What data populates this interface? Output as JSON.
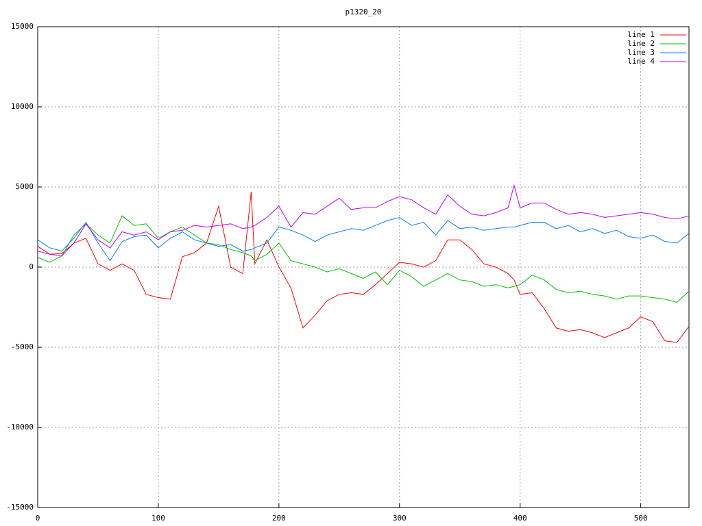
{
  "chart_data": {
    "type": "line",
    "title": "p1320_20",
    "x": [
      0,
      10,
      20,
      30,
      40,
      50,
      60,
      70,
      80,
      90,
      100,
      110,
      120,
      130,
      140,
      150,
      160,
      170,
      177,
      180,
      190,
      200,
      210,
      220,
      230,
      240,
      250,
      260,
      270,
      280,
      290,
      300,
      310,
      320,
      330,
      340,
      350,
      360,
      370,
      380,
      390,
      395,
      400,
      410,
      420,
      430,
      440,
      450,
      460,
      470,
      480,
      490,
      500,
      510,
      520,
      530,
      540
    ],
    "series": [
      {
        "name": "line 1",
        "color": "#ff0000",
        "values": [
          1300,
          800,
          850,
          1500,
          1800,
          200,
          -200,
          200,
          -200,
          -1700,
          -1900,
          -2000,
          650,
          900,
          1500,
          3800,
          0,
          -400,
          4700,
          200,
          1700,
          0,
          -1300,
          -3800,
          -3000,
          -2100,
          -1700,
          -1600,
          -1700,
          -1100,
          -400,
          300,
          200,
          0,
          400,
          1700,
          1700,
          1100,
          200,
          0,
          -400,
          -800,
          -1700,
          -1600,
          -2600,
          -3800,
          -4000,
          -3900,
          -4100,
          -4400,
          -4100,
          -3800,
          -3100,
          -3400,
          -4600,
          -4700,
          -3700
        ]
      },
      {
        "name": "line 2",
        "color": "#00c000",
        "values": [
          600,
          300,
          700,
          2000,
          2700,
          2000,
          1500,
          3200,
          2600,
          2700,
          1800,
          2200,
          2500,
          2000,
          1500,
          1400,
          1100,
          900,
          700,
          400,
          800,
          1500,
          400,
          200,
          0,
          -300,
          -100,
          -400,
          -700,
          -300,
          -1100,
          -200,
          -600,
          -1200,
          -800,
          -400,
          -800,
          -900,
          -1200,
          -1100,
          -1300,
          -1200,
          -1100,
          -500,
          -800,
          -1400,
          -1600,
          -1500,
          -1700,
          -1800,
          -2000,
          -1800,
          -1800,
          -1900,
          -2000,
          -2200,
          -1500
        ]
      },
      {
        "name": "line 3",
        "color": "#0080ff",
        "values": [
          1700,
          1200,
          1000,
          1800,
          2800,
          1500,
          400,
          1600,
          1900,
          2000,
          1200,
          1800,
          2200,
          1700,
          1500,
          1300,
          1400,
          1000,
          1100,
          1200,
          1500,
          2500,
          2300,
          2000,
          1600,
          2000,
          2200,
          2400,
          2300,
          2600,
          2900,
          3100,
          2600,
          2800,
          2000,
          2900,
          2400,
          2500,
          2300,
          2400,
          2500,
          2500,
          2600,
          2800,
          2800,
          2400,
          2600,
          2200,
          2400,
          2100,
          2300,
          1900,
          1800,
          2000,
          1600,
          1500,
          2100
        ]
      },
      {
        "name": "line 4",
        "color": "#c000ff",
        "values": [
          1000,
          800,
          700,
          1500,
          2700,
          1700,
          1200,
          2200,
          2000,
          2200,
          1700,
          2200,
          2300,
          2600,
          2500,
          2600,
          2700,
          2400,
          2500,
          2600,
          3100,
          3800,
          2500,
          3400,
          3300,
          3800,
          4300,
          3600,
          3700,
          3700,
          4100,
          4400,
          4200,
          3700,
          3300,
          4500,
          3800,
          3300,
          3200,
          3400,
          3700,
          5100,
          3700,
          4000,
          4000,
          3600,
          3300,
          3400,
          3300,
          3100,
          3200,
          3300,
          3400,
          3300,
          3100,
          3000,
          3200
        ]
      }
    ],
    "xlim": [
      0,
      540
    ],
    "xticks": [
      0,
      100,
      200,
      300,
      400,
      500
    ],
    "ylim": [
      -15000,
      15000
    ],
    "yticks": [
      -15000,
      -10000,
      -5000,
      0,
      5000,
      10000,
      15000
    ],
    "grid": true,
    "legend": "top-right"
  }
}
